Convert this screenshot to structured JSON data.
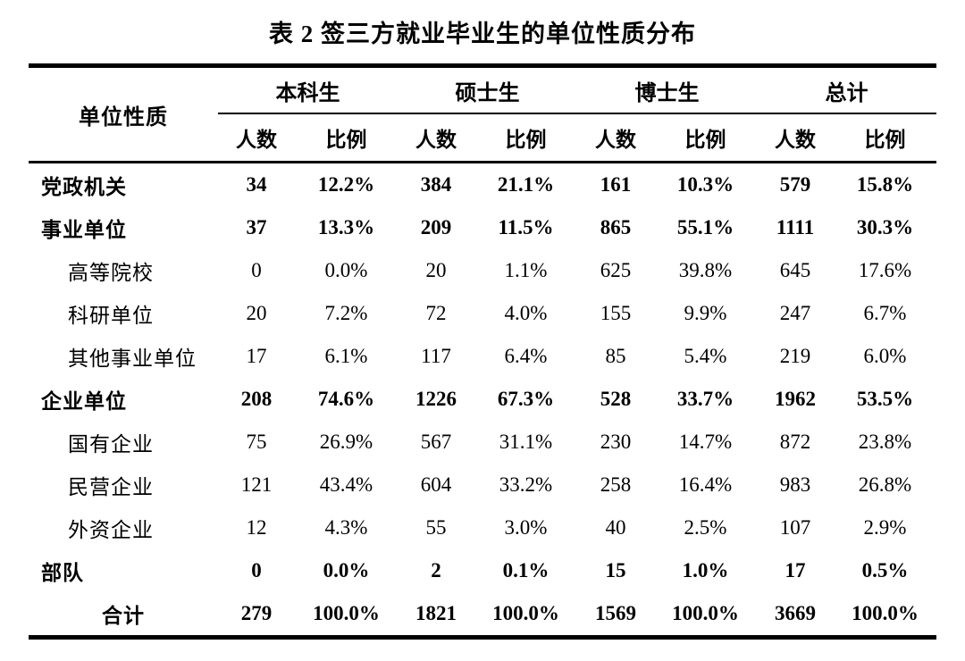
{
  "title": "表 2 签三方就业毕业生的单位性质分布",
  "colors": {
    "text": "#000000",
    "background": "#ffffff",
    "rule": "#000000"
  },
  "table": {
    "label_header": "单位性质",
    "groups": [
      "本科生",
      "硕士生",
      "博士生",
      "总计"
    ],
    "sub_headers": [
      "人数",
      "比例"
    ],
    "rows": [
      {
        "label": "党政机关",
        "bold": true,
        "indent": false,
        "center": false,
        "values": [
          "34",
          "12.2%",
          "384",
          "21.1%",
          "161",
          "10.3%",
          "579",
          "15.8%"
        ]
      },
      {
        "label": "事业单位",
        "bold": true,
        "indent": false,
        "center": false,
        "values": [
          "37",
          "13.3%",
          "209",
          "11.5%",
          "865",
          "55.1%",
          "1111",
          "30.3%"
        ]
      },
      {
        "label": "高等院校",
        "bold": false,
        "indent": true,
        "center": false,
        "values": [
          "0",
          "0.0%",
          "20",
          "1.1%",
          "625",
          "39.8%",
          "645",
          "17.6%"
        ]
      },
      {
        "label": "科研单位",
        "bold": false,
        "indent": true,
        "center": false,
        "values": [
          "20",
          "7.2%",
          "72",
          "4.0%",
          "155",
          "9.9%",
          "247",
          "6.7%"
        ]
      },
      {
        "label": "其他事业单位",
        "bold": false,
        "indent": true,
        "center": false,
        "values": [
          "17",
          "6.1%",
          "117",
          "6.4%",
          "85",
          "5.4%",
          "219",
          "6.0%"
        ]
      },
      {
        "label": "企业单位",
        "bold": true,
        "indent": false,
        "center": false,
        "values": [
          "208",
          "74.6%",
          "1226",
          "67.3%",
          "528",
          "33.7%",
          "1962",
          "53.5%"
        ]
      },
      {
        "label": "国有企业",
        "bold": false,
        "indent": true,
        "center": false,
        "values": [
          "75",
          "26.9%",
          "567",
          "31.1%",
          "230",
          "14.7%",
          "872",
          "23.8%"
        ]
      },
      {
        "label": "民营企业",
        "bold": false,
        "indent": true,
        "center": false,
        "values": [
          "121",
          "43.4%",
          "604",
          "33.2%",
          "258",
          "16.4%",
          "983",
          "26.8%"
        ]
      },
      {
        "label": "外资企业",
        "bold": false,
        "indent": true,
        "center": false,
        "values": [
          "12",
          "4.3%",
          "55",
          "3.0%",
          "40",
          "2.5%",
          "107",
          "2.9%"
        ]
      },
      {
        "label": "部队",
        "bold": true,
        "indent": false,
        "center": false,
        "values": [
          "0",
          "0.0%",
          "2",
          "0.1%",
          "15",
          "1.0%",
          "17",
          "0.5%"
        ]
      },
      {
        "label": "合计",
        "bold": true,
        "indent": false,
        "center": true,
        "values": [
          "279",
          "100.0%",
          "1821",
          "100.0%",
          "1569",
          "100.0%",
          "3669",
          "100.0%"
        ]
      }
    ]
  }
}
